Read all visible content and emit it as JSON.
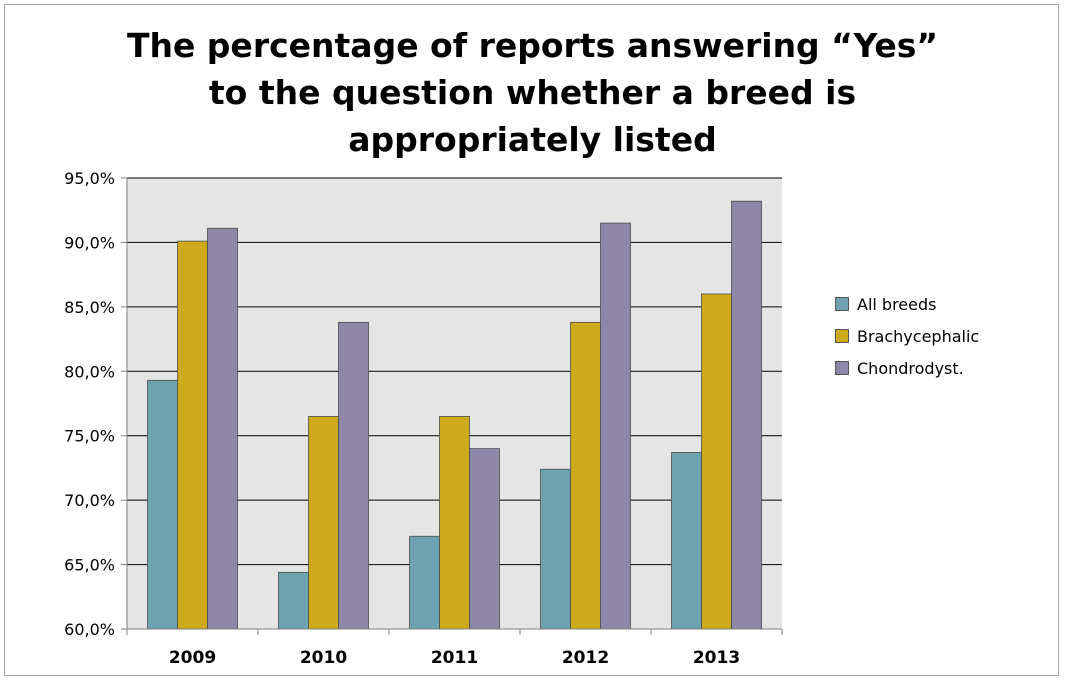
{
  "chart_data": {
    "type": "bar",
    "title": "The percentage of  reports answering “Yes”\nto the  question whether a  breed is\nappropriately listed",
    "xlabel": "",
    "ylabel": "",
    "categories": [
      "2009",
      "2010",
      "2011",
      "2012",
      "2013"
    ],
    "series": [
      {
        "name": "All breeds",
        "color": "#6fa2b0",
        "values": [
          79.3,
          64.4,
          67.2,
          72.4,
          73.7
        ]
      },
      {
        "name": "Brachycephalic",
        "color": "#ccaa1c",
        "values": [
          90.1,
          76.5,
          76.5,
          83.8,
          86.0
        ]
      },
      {
        "name": "Chondrodyst.",
        "color": "#8e87a8",
        "values": [
          91.1,
          83.8,
          74.0,
          91.5,
          93.2
        ]
      }
    ],
    "ylim": [
      60.0,
      95.0
    ],
    "yticks": [
      60.0,
      65.0,
      70.0,
      75.0,
      80.0,
      85.0,
      90.0,
      95.0
    ],
    "ytick_labels": [
      "60,0%",
      "65,0%",
      "70,0%",
      "75,0%",
      "80,0%",
      "85,0%",
      "90,0%",
      "95,0%"
    ],
    "grid": true,
    "plot_background": "#e5e5e5",
    "legend_position": "right"
  }
}
